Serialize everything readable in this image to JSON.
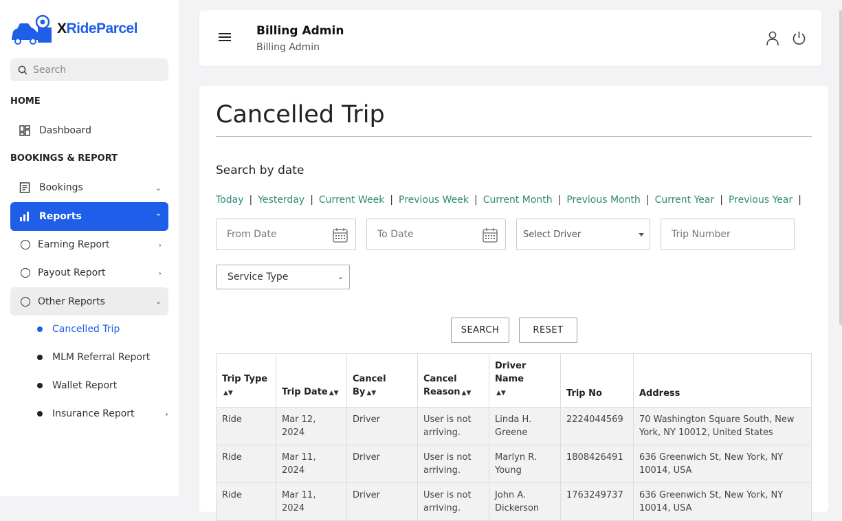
{
  "brand": {
    "x": "X",
    "rest": "RideParcel",
    "accent": "#1e5ee8"
  },
  "sidebar": {
    "search_placeholder": "Search",
    "home_title": "HOME",
    "dashboard": "Dashboard",
    "bookings_title": "BOOKINGS & REPORT",
    "bookings": "Bookings",
    "reports": "Reports",
    "earning": "Earning Report",
    "payout": "Payout Report",
    "other": "Other Reports",
    "sub": {
      "cancelled": "Cancelled Trip",
      "mlm": "MLM Referral Report",
      "wallet": "Wallet Report",
      "insurance": "Insurance Report"
    }
  },
  "header": {
    "title": "Billing Admin",
    "subtitle": "Billing Admin"
  },
  "main": {
    "title": "Cancelled Trip",
    "search_by": "Search by date",
    "quick": [
      "Today",
      "Yesterday",
      "Current Week",
      "Previous Week",
      "Current Month",
      "Previous Month",
      "Current Year",
      "Previous Year"
    ],
    "from_date": "From Date",
    "to_date": "To Date",
    "select_driver": "Select Driver",
    "trip_number": "Trip Number",
    "service_type": "Service Type",
    "search_btn": "SEARCH",
    "reset_btn": "RESET"
  },
  "table": {
    "headers": [
      "Trip Type",
      "Trip Date",
      "Cancel By",
      "Cancel Reason",
      "Driver Name",
      "Trip No",
      "Address"
    ],
    "rows": [
      [
        "Ride",
        "Mar 12, 2024",
        "Driver",
        "User is not arriving.",
        "Linda H. Greene",
        "2224044569",
        "70 Washington Square South, New York, NY 10012, United States"
      ],
      [
        "Ride",
        "Mar 11, 2024",
        "Driver",
        "User is not arriving.",
        "Marlyn R. Young",
        "1808426491",
        "636 Greenwich St, New York, NY 10014, USA"
      ],
      [
        "Ride",
        "Mar 11, 2024",
        "Driver",
        "User is not arriving.",
        "John A. Dickerson",
        "1763249737",
        "636 Greenwich St, New York, NY 10014, USA"
      ]
    ]
  }
}
